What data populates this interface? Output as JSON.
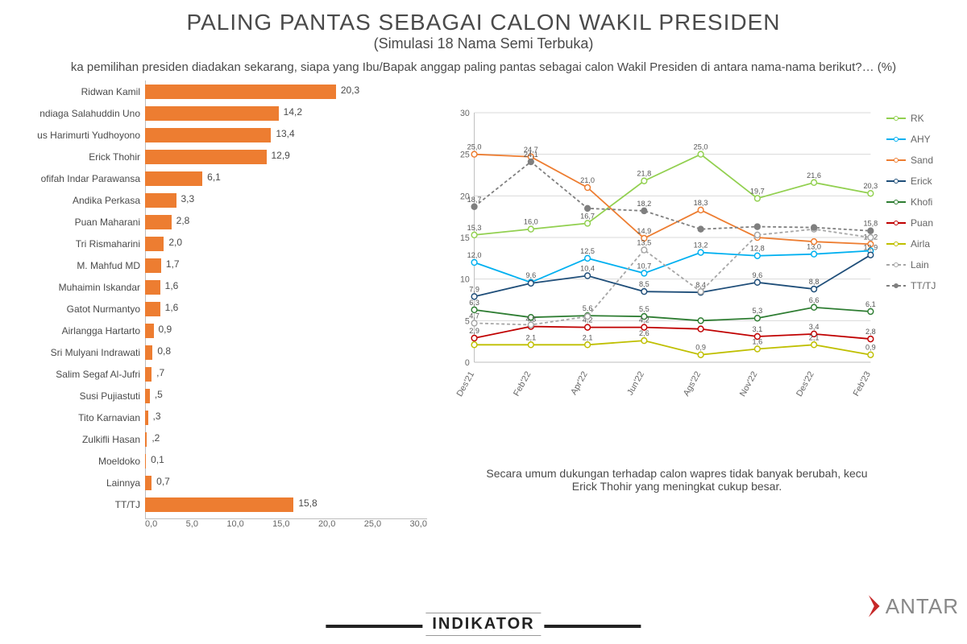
{
  "title": "PALING PANTAS SEBAGAI CALON WAKIL PRESIDEN",
  "subtitle": "(Simulasi 18 Nama Semi Terbuka)",
  "question": "ka pemilihan presiden diadakan sekarang, siapa yang Ibu/Bapak anggap paling pantas sebagai calon Wakil Presiden di antara nama-nama berikut?… (%)",
  "note": "Secara umum dukungan terhadap calon wapres tidak banyak berubah, kecu Erick Thohir yang meningkat cukup besar.",
  "logo1": "INDIKATOR",
  "logo2": "ANTAR",
  "bar_chart": {
    "type": "bar-horizontal",
    "bar_color": "#ed7d31",
    "max": 30,
    "axis_ticks": [
      "0,0",
      "5,0",
      "10,0",
      "15,0",
      "20,0",
      "25,0",
      "30,0"
    ],
    "items": [
      {
        "label": "Ridwan Kamil",
        "value": 20.3,
        "disp": "20,3"
      },
      {
        "label": "ndiaga Salahuddin Uno",
        "value": 14.2,
        "disp": "14,2"
      },
      {
        "label": "us Harimurti Yudhoyono",
        "value": 13.4,
        "disp": "13,4"
      },
      {
        "label": "Erick Thohir",
        "value": 12.9,
        "disp": "12,9"
      },
      {
        "label": "ofifah Indar Parawansa",
        "value": 6.1,
        "disp": "6,1"
      },
      {
        "label": "Andika Perkasa",
        "value": 3.3,
        "disp": "3,3"
      },
      {
        "label": "Puan Maharani",
        "value": 2.8,
        "disp": "2,8"
      },
      {
        "label": "Tri Rismaharini",
        "value": 2.0,
        "disp": "2,0"
      },
      {
        "label": "M. Mahfud MD",
        "value": 1.7,
        "disp": "1,7"
      },
      {
        "label": "Muhaimin Iskandar",
        "value": 1.6,
        "disp": "1,6"
      },
      {
        "label": "Gatot Nurmantyo",
        "value": 1.6,
        "disp": "1,6"
      },
      {
        "label": "Airlangga Hartarto",
        "value": 0.9,
        "disp": "0,9"
      },
      {
        "label": "Sri Mulyani Indrawati",
        "value": 0.8,
        "disp": "0,8"
      },
      {
        "label": "Salim Segaf Al-Jufri",
        "value": 0.7,
        "disp": ",7"
      },
      {
        "label": "Susi Pujiastuti",
        "value": 0.5,
        "disp": ",5"
      },
      {
        "label": "Tito Karnavian",
        "value": 0.3,
        "disp": ",3"
      },
      {
        "label": "Zulkifli Hasan",
        "value": 0.2,
        "disp": ",2"
      },
      {
        "label": "Moeldoko",
        "value": 0.1,
        "disp": "0,1"
      },
      {
        "label": "Lainnya",
        "value": 0.7,
        "disp": "0,7"
      },
      {
        "label": "TT/TJ",
        "value": 15.8,
        "disp": "15,8"
      }
    ]
  },
  "line_chart": {
    "type": "line",
    "ylim": [
      0,
      30
    ],
    "yticks": [
      0,
      5,
      10,
      15,
      20,
      25,
      30
    ],
    "xlabels": [
      "Des'21",
      "Feb'22",
      "Apr'22",
      "Jun'22",
      "Ags'22",
      "Nov'22",
      "Des'22",
      "Feb'23"
    ],
    "grid_color": "#d9d9d9",
    "background_color": "#ffffff",
    "label_fontsize": 11,
    "series": [
      {
        "name": "RK",
        "color": "#92d050",
        "dash": "",
        "values": [
          15.3,
          16.0,
          16.7,
          21.8,
          25.0,
          19.7,
          21.6,
          20.3
        ],
        "disp": [
          "15,3",
          "16,0",
          "16,7",
          "21,8",
          "25,0",
          "19,7",
          "21,6",
          "20,3"
        ]
      },
      {
        "name": "AHY",
        "color": "#00b0f0",
        "dash": "",
        "values": [
          12.0,
          9.6,
          12.5,
          10.7,
          13.2,
          12.8,
          13.0,
          13.4
        ],
        "disp": [
          "12,0",
          "9,6",
          "12,5",
          "10,7",
          "13,2",
          "12,8",
          "13,0",
          ""
        ]
      },
      {
        "name": "Sand",
        "color": "#ed7d31",
        "dash": "",
        "values": [
          25.0,
          24.7,
          21.0,
          14.9,
          18.3,
          15.0,
          14.5,
          14.2
        ],
        "disp": [
          "25,0",
          "24,7",
          "21,0",
          "14,9",
          "18,3",
          "",
          "",
          "14,2"
        ]
      },
      {
        "name": "Erick",
        "color": "#1f4e79",
        "dash": "",
        "values": [
          7.9,
          9.5,
          10.4,
          8.5,
          8.4,
          9.6,
          8.8,
          12.9
        ],
        "disp": [
          "7,9",
          "",
          "10,4",
          "8,5",
          "8,4",
          "9,6",
          "8,8",
          "12,9"
        ]
      },
      {
        "name": "Khofi",
        "color": "#2e7d32",
        "dash": "",
        "values": [
          6.3,
          5.4,
          5.6,
          5.5,
          5.0,
          5.3,
          6.6,
          6.1
        ],
        "disp": [
          "6,3",
          "",
          "5,6",
          "5,5",
          "",
          "5,3",
          "6,6",
          "6,1"
        ]
      },
      {
        "name": "Puan",
        "color": "#c00000",
        "dash": "",
        "values": [
          2.9,
          4.3,
          4.2,
          4.2,
          4.0,
          3.1,
          3.4,
          2.8
        ],
        "disp": [
          "2,9",
          "4,3",
          "4,2",
          "4,2",
          "",
          "3,1",
          "3,4",
          "2,8"
        ]
      },
      {
        "name": "Airla",
        "color": "#bfbf00",
        "dash": "",
        "values": [
          2.1,
          2.1,
          2.1,
          2.6,
          0.9,
          1.6,
          2.1,
          0.9
        ],
        "disp": [
          "",
          "2,1",
          "2,1",
          "2,6",
          "0,9",
          "1,6",
          "2,1",
          "0,9"
        ]
      },
      {
        "name": "Lain",
        "color": "#a6a6a6",
        "dash": "4 3",
        "values": [
          4.7,
          4.5,
          5.5,
          13.5,
          8.5,
          15.3,
          16.0,
          15.0
        ],
        "disp": [
          "4,7",
          "",
          "",
          "13,5",
          "",
          "",
          "",
          ""
        ]
      },
      {
        "name": "TT/TJ",
        "color": "#7f7f7f",
        "dash": "4 3",
        "filled": true,
        "values": [
          18.7,
          24.1,
          18.5,
          18.2,
          16.0,
          16.3,
          16.2,
          15.8
        ],
        "disp": [
          "18,7",
          "24,1",
          "",
          "18,2",
          "",
          "",
          "",
          "15,8"
        ]
      }
    ]
  }
}
